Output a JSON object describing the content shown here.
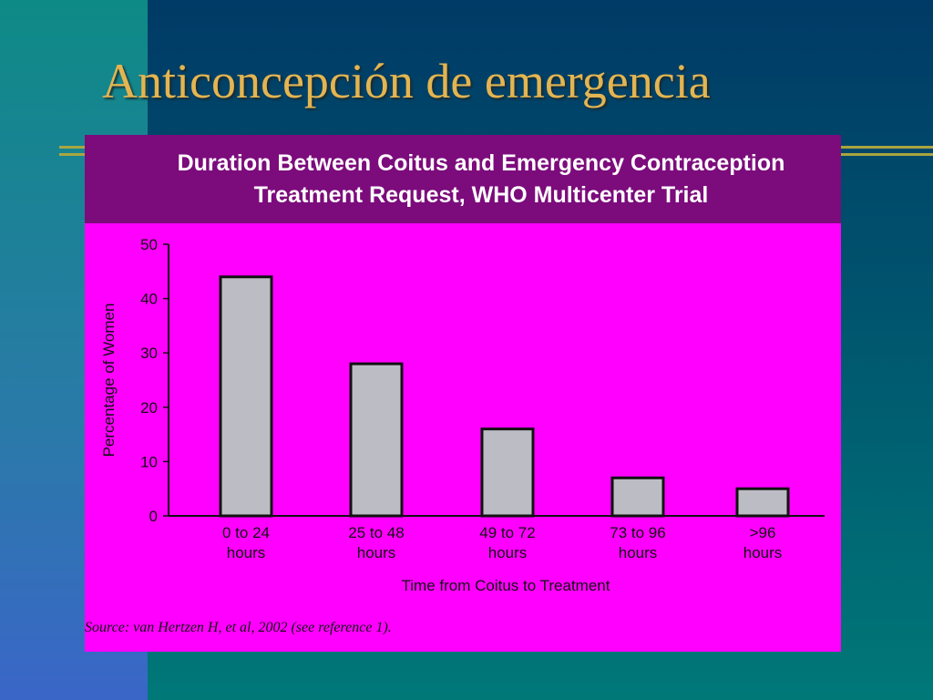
{
  "title": "Anticoncepción de emergencia",
  "chart_data": {
    "type": "bar",
    "title": "Duration Between Coitus and Emergency Contraception Treatment Request, WHO Multicenter Trial",
    "categories": [
      "0 to 24 hours",
      "25 to 48 hours",
      "49 to 72 hours",
      "73 to 96 hours",
      ">96 hours"
    ],
    "values": [
      44,
      28,
      16,
      7,
      5
    ],
    "color": "#bcbcc4",
    "x_label": "Time from Coitus to Treatment",
    "y_label": "Percentage of Women",
    "ylim": [
      0,
      50
    ],
    "yticks": [
      0,
      10,
      20,
      30,
      40,
      50
    ],
    "source": "Source: van Hertzen H, et al, 2002 (see reference 1)."
  }
}
